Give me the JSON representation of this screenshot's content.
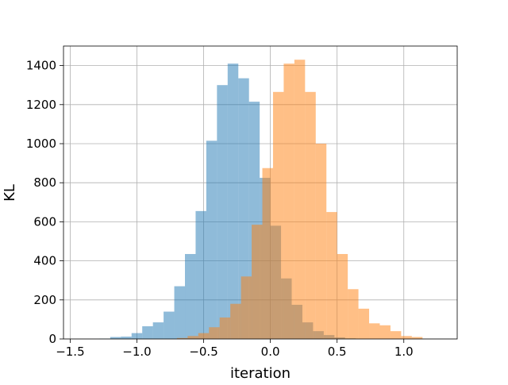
{
  "chart_data": {
    "type": "histogram",
    "title": "",
    "xlabel": "iteration",
    "ylabel": "KL",
    "xlim": [
      -1.55,
      1.4
    ],
    "ylim": [
      0,
      1500
    ],
    "xticks": [
      -1.5,
      -1.0,
      -0.5,
      0.0,
      0.5,
      1.0
    ],
    "xtick_labels": [
      "−1.5",
      "−1.0",
      "−0.5",
      "0.0",
      "0.5",
      "1.0"
    ],
    "yticks": [
      0,
      200,
      400,
      600,
      800,
      1000,
      1200,
      1400
    ],
    "ytick_labels": [
      "0",
      "200",
      "400",
      "600",
      "800",
      "1000",
      "1200",
      "1400"
    ],
    "grid": true,
    "legend": "none",
    "series": [
      {
        "color": "#1f77b4",
        "alpha": 0.5,
        "bins": [
          {
            "x0": -1.28,
            "x1": -1.2,
            "count": 2
          },
          {
            "x0": -1.2,
            "x1": -1.12,
            "count": 10
          },
          {
            "x0": -1.12,
            "x1": -1.04,
            "count": 12
          },
          {
            "x0": -1.04,
            "x1": -0.96,
            "count": 30
          },
          {
            "x0": -0.96,
            "x1": -0.88,
            "count": 65
          },
          {
            "x0": -0.88,
            "x1": -0.8,
            "count": 85
          },
          {
            "x0": -0.8,
            "x1": -0.72,
            "count": 140
          },
          {
            "x0": -0.72,
            "x1": -0.64,
            "count": 270
          },
          {
            "x0": -0.64,
            "x1": -0.56,
            "count": 435
          },
          {
            "x0": -0.56,
            "x1": -0.48,
            "count": 655
          },
          {
            "x0": -0.48,
            "x1": -0.4,
            "count": 1015
          },
          {
            "x0": -0.4,
            "x1": -0.32,
            "count": 1300
          },
          {
            "x0": -0.32,
            "x1": -0.24,
            "count": 1410
          },
          {
            "x0": -0.24,
            "x1": -0.16,
            "count": 1335
          },
          {
            "x0": -0.16,
            "x1": -0.08,
            "count": 1215
          },
          {
            "x0": -0.08,
            "x1": 0.0,
            "count": 825
          },
          {
            "x0": 0.0,
            "x1": 0.08,
            "count": 580
          },
          {
            "x0": 0.08,
            "x1": 0.16,
            "count": 310
          },
          {
            "x0": 0.16,
            "x1": 0.24,
            "count": 175
          },
          {
            "x0": 0.24,
            "x1": 0.32,
            "count": 85
          },
          {
            "x0": 0.32,
            "x1": 0.4,
            "count": 40
          },
          {
            "x0": 0.4,
            "x1": 0.48,
            "count": 20
          },
          {
            "x0": 0.48,
            "x1": 0.56,
            "count": 8
          },
          {
            "x0": 0.56,
            "x1": 0.64,
            "count": 3
          }
        ]
      },
      {
        "color": "#ff7f0e",
        "alpha": 0.5,
        "bins": [
          {
            "x0": -0.7,
            "x1": -0.62,
            "count": 5
          },
          {
            "x0": -0.62,
            "x1": -0.54,
            "count": 15
          },
          {
            "x0": -0.54,
            "x1": -0.46,
            "count": 30
          },
          {
            "x0": -0.46,
            "x1": -0.38,
            "count": 60
          },
          {
            "x0": -0.38,
            "x1": -0.3,
            "count": 110
          },
          {
            "x0": -0.3,
            "x1": -0.22,
            "count": 180
          },
          {
            "x0": -0.22,
            "x1": -0.14,
            "count": 320
          },
          {
            "x0": -0.14,
            "x1": -0.06,
            "count": 585
          },
          {
            "x0": -0.06,
            "x1": 0.02,
            "count": 875
          },
          {
            "x0": 0.02,
            "x1": 0.1,
            "count": 1265
          },
          {
            "x0": 0.1,
            "x1": 0.18,
            "count": 1410
          },
          {
            "x0": 0.18,
            "x1": 0.26,
            "count": 1430
          },
          {
            "x0": 0.26,
            "x1": 0.34,
            "count": 1265
          },
          {
            "x0": 0.34,
            "x1": 0.42,
            "count": 1000
          },
          {
            "x0": 0.42,
            "x1": 0.5,
            "count": 650
          },
          {
            "x0": 0.5,
            "x1": 0.58,
            "count": 435
          },
          {
            "x0": 0.58,
            "x1": 0.66,
            "count": 255
          },
          {
            "x0": 0.66,
            "x1": 0.74,
            "count": 155
          },
          {
            "x0": 0.74,
            "x1": 0.82,
            "count": 80
          },
          {
            "x0": 0.82,
            "x1": 0.9,
            "count": 70
          },
          {
            "x0": 0.9,
            "x1": 0.98,
            "count": 40
          },
          {
            "x0": 0.98,
            "x1": 1.06,
            "count": 15
          },
          {
            "x0": 1.06,
            "x1": 1.14,
            "count": 10
          }
        ]
      }
    ]
  }
}
